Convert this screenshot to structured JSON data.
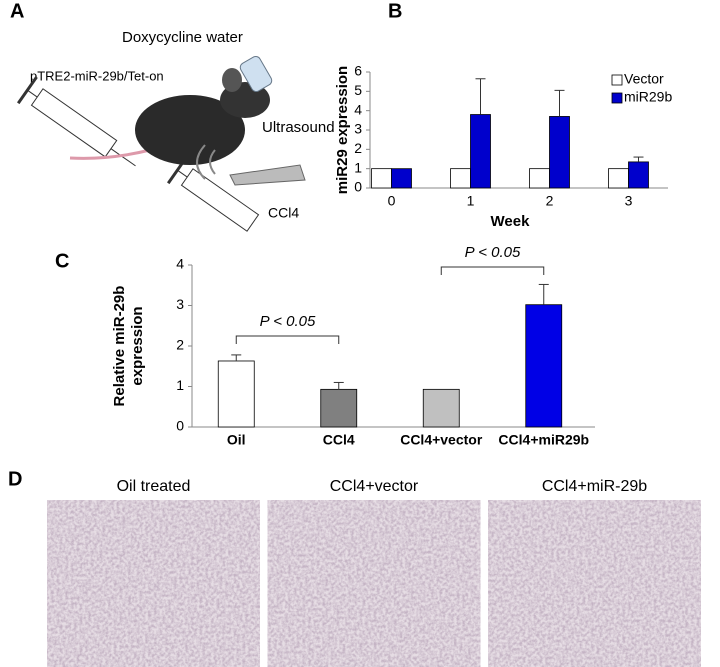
{
  "panel_labels": [
    "A",
    "B",
    "C",
    "D"
  ],
  "diagram": {
    "water": "Doxycycline water",
    "vector": "pTRE2-miR-29b/Tet-on",
    "ultrasound": "Ultrasound",
    "injection": "CCl4"
  },
  "chart_data": [
    {
      "type": "bar",
      "x_label": "Week",
      "y_label": "miR29 expression",
      "categories": [
        "0",
        "1",
        "2",
        "3"
      ],
      "series": [
        {
          "name": "Vector",
          "color": "#ffffff",
          "values": [
            1,
            1,
            1,
            1
          ]
        },
        {
          "name": "miR29b",
          "color": "#0000cc",
          "values": [
            1,
            3.8,
            3.7,
            1.35
          ],
          "errors": [
            0,
            1.85,
            1.35,
            0.25
          ]
        }
      ],
      "ylim": [
        0,
        6
      ],
      "yticks": [
        0,
        1,
        2,
        3,
        4,
        5,
        6
      ],
      "legend": "top-right"
    },
    {
      "type": "bar",
      "ylabel_lines": [
        "Relative miR-29b",
        "expression"
      ],
      "categories": [
        "Oil",
        "CCl4",
        "CCl4+vector",
        "CCl4+miR29b"
      ],
      "values": [
        1.63,
        0.93,
        0.93,
        3.02
      ],
      "errors": [
        0.15,
        0.17,
        0,
        0.5
      ],
      "colors": [
        "#ffffff",
        "#808080",
        "#c0c0c0",
        "#0000e6"
      ],
      "ylim": [
        0,
        4
      ],
      "yticks": [
        0,
        1,
        2,
        3,
        4
      ],
      "annotations": [
        "P < 0.05",
        "P < 0.05"
      ]
    }
  ],
  "micrographs": [
    "Oil treated",
    "CCl4+vector",
    "CCl4+miR-29b"
  ]
}
